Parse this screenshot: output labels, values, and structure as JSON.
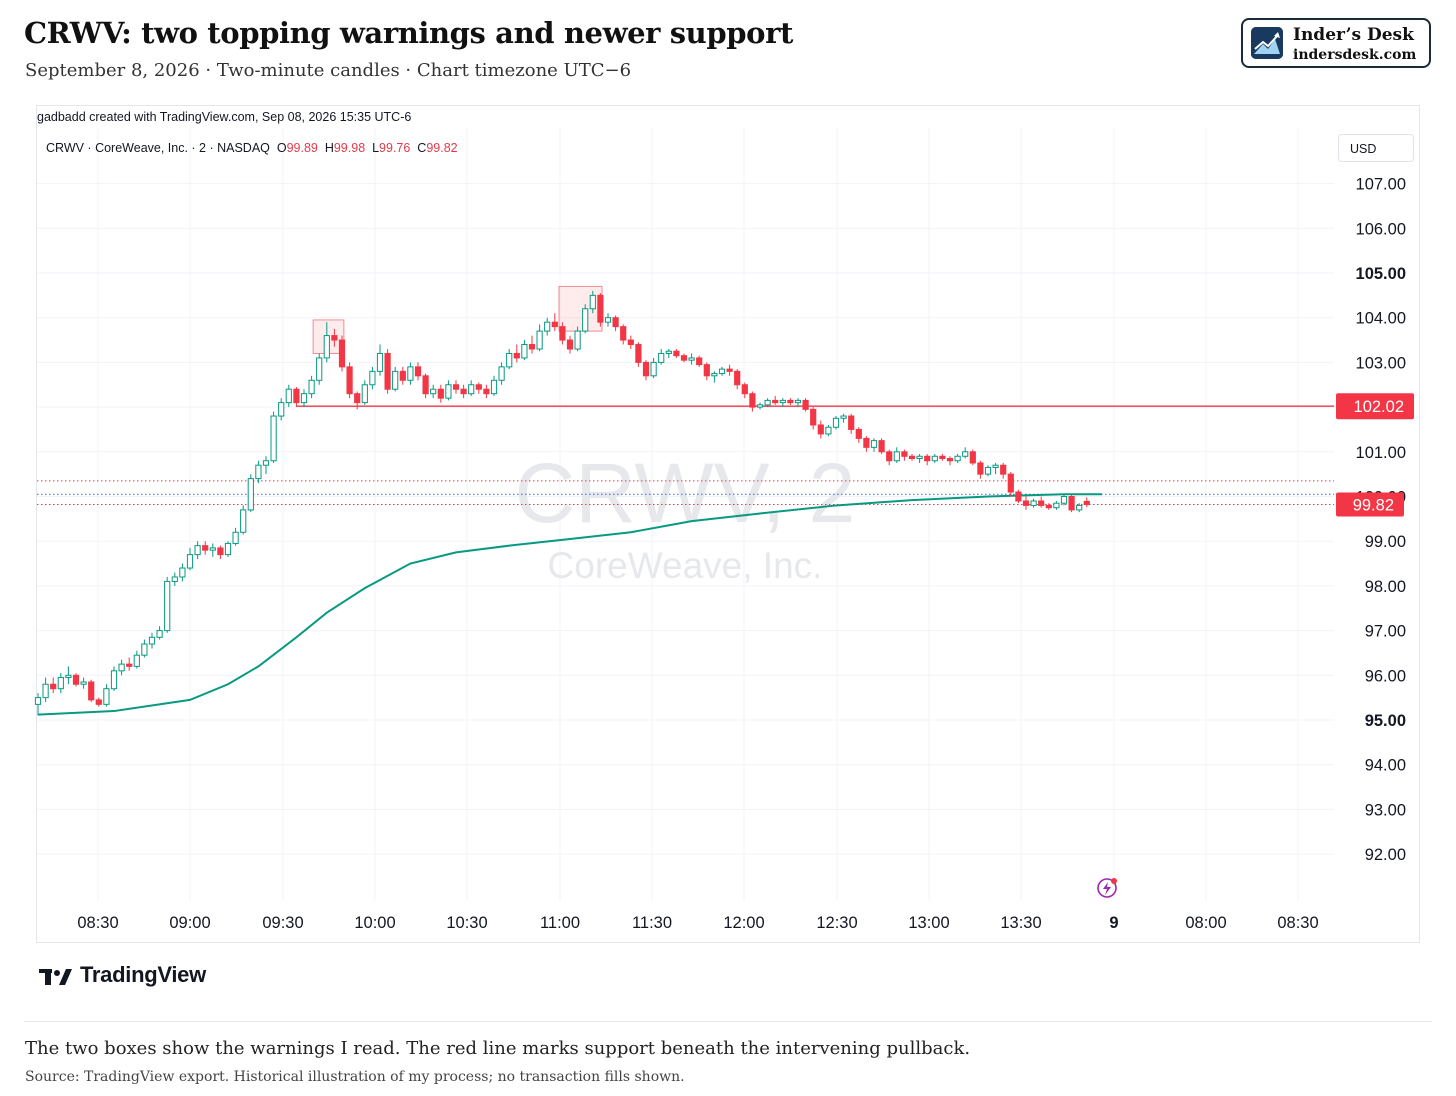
{
  "header": {
    "title": "CRWV: two topping warnings and newer support",
    "subtitle": "September 8, 2026 · Two-minute candles · Chart timezone UTC−6"
  },
  "brand": {
    "name": "Inder’s Desk",
    "url": "indersdesk.com"
  },
  "chart_meta": {
    "created_by": "gadbadd created with TradingView.com, Sep 08, 2026 15:35 UTC-6",
    "legend_symbol": "CRWV · CoreWeave, Inc. · 2 · NASDAQ",
    "legend_o_label": "O",
    "legend_o": "99.89",
    "legend_h_label": "H",
    "legend_h": "99.98",
    "legend_l_label": "L",
    "legend_l": "99.76",
    "legend_c_label": "C",
    "legend_c": "99.82",
    "currency": "USD",
    "watermark_symbol": "CRWV, 2",
    "watermark_name": "CoreWeave, Inc.",
    "tv_wordmark": "TradingView",
    "colors": {
      "up": "#089981",
      "down": "#f23645",
      "vwap": "#089981",
      "support": "#f23645",
      "box_fill": "rgba(242,54,69,0.10)",
      "box_stroke": "#f28b93"
    }
  },
  "chart_data": {
    "type": "candlestick",
    "title": "",
    "interval": "2 minutes",
    "ylim": [
      91.0,
      107.9
    ],
    "y_ticks": [
      92.0,
      93.0,
      94.0,
      95.0,
      96.0,
      97.0,
      98.0,
      99.0,
      100.0,
      101.0,
      102.0,
      103.0,
      104.0,
      105.0,
      106.0,
      107.0
    ],
    "y_tick_labels": [
      "92.00",
      "93.00",
      "94.00",
      "95.00",
      "96.00",
      "97.00",
      "98.00",
      "99.00",
      "100.00",
      "101.00",
      "102.00",
      "103.00",
      "104.00",
      "105.00",
      "106.00",
      "107.00"
    ],
    "y_tick_bold": [
      "95.00",
      "105.00"
    ],
    "x_ticks": [
      "08:30",
      "09:00",
      "09:30",
      "10:00",
      "10:30",
      "11:00",
      "11:30",
      "12:00",
      "12:30",
      "13:00",
      "13:30",
      "9",
      "08:00",
      "08:30"
    ],
    "x_tick_bold": [
      "9"
    ],
    "session_start": "08:10",
    "support_level": 102.02,
    "support_label": "102.02",
    "last_price": 99.82,
    "last_price_label": "99.82",
    "dotted_levels": [
      {
        "value": 100.35,
        "color": "#f23645"
      },
      {
        "value": 100.05,
        "color": "#2962ff"
      },
      {
        "value": 99.82,
        "color": "#f23645"
      }
    ],
    "warning_boxes": [
      {
        "t_start": "09:40",
        "t_end": "09:50",
        "low": 103.2,
        "high": 103.95
      },
      {
        "t_start": "11:00",
        "t_end": "11:14",
        "low": 103.7,
        "high": 104.7
      }
    ],
    "candles": [
      [
        95.35,
        95.6,
        95.1,
        95.5
      ],
      [
        95.5,
        95.95,
        95.4,
        95.8
      ],
      [
        95.8,
        95.95,
        95.6,
        95.7
      ],
      [
        95.7,
        96.05,
        95.6,
        95.95
      ],
      [
        95.95,
        96.2,
        95.8,
        96.0
      ],
      [
        96.0,
        96.05,
        95.75,
        95.8
      ],
      [
        95.8,
        95.95,
        95.7,
        95.85
      ],
      [
        95.85,
        95.9,
        95.4,
        95.45
      ],
      [
        95.45,
        95.5,
        95.3,
        95.35
      ],
      [
        95.35,
        95.8,
        95.3,
        95.7
      ],
      [
        95.7,
        96.2,
        95.65,
        96.1
      ],
      [
        96.1,
        96.35,
        96.0,
        96.25
      ],
      [
        96.25,
        96.4,
        96.1,
        96.2
      ],
      [
        96.2,
        96.55,
        96.15,
        96.45
      ],
      [
        96.45,
        96.8,
        96.4,
        96.7
      ],
      [
        96.7,
        96.95,
        96.6,
        96.85
      ],
      [
        96.85,
        97.1,
        96.8,
        97.0
      ],
      [
        97.0,
        98.2,
        96.95,
        98.1
      ],
      [
        98.1,
        98.3,
        98.0,
        98.2
      ],
      [
        98.2,
        98.5,
        98.1,
        98.4
      ],
      [
        98.4,
        98.85,
        98.35,
        98.7
      ],
      [
        98.7,
        99.0,
        98.6,
        98.9
      ],
      [
        98.9,
        99.0,
        98.7,
        98.8
      ],
      [
        98.8,
        98.95,
        98.65,
        98.85
      ],
      [
        98.85,
        98.9,
        98.6,
        98.7
      ],
      [
        98.7,
        99.0,
        98.65,
        98.95
      ],
      [
        98.95,
        99.3,
        98.9,
        99.2
      ],
      [
        99.2,
        99.8,
        99.15,
        99.7
      ],
      [
        99.7,
        100.5,
        99.65,
        100.4
      ],
      [
        100.4,
        100.8,
        100.3,
        100.7
      ],
      [
        100.7,
        100.9,
        100.5,
        100.8
      ],
      [
        100.8,
        101.9,
        100.75,
        101.8
      ],
      [
        101.8,
        102.2,
        101.7,
        102.1
      ],
      [
        102.1,
        102.5,
        102.0,
        102.4
      ],
      [
        102.4,
        102.45,
        102.0,
        102.1
      ],
      [
        102.1,
        102.4,
        102.0,
        102.3
      ],
      [
        102.3,
        102.7,
        102.2,
        102.6
      ],
      [
        102.6,
        103.2,
        102.5,
        103.1
      ],
      [
        103.1,
        103.9,
        103.0,
        103.6
      ],
      [
        103.6,
        103.75,
        103.35,
        103.5
      ],
      [
        103.5,
        103.6,
        102.8,
        102.9
      ],
      [
        102.9,
        103.0,
        102.2,
        102.3
      ],
      [
        102.3,
        102.35,
        101.95,
        102.1
      ],
      [
        102.1,
        102.6,
        102.05,
        102.5
      ],
      [
        102.5,
        102.9,
        102.4,
        102.8
      ],
      [
        102.8,
        103.4,
        102.7,
        103.2
      ],
      [
        103.2,
        103.3,
        102.3,
        102.4
      ],
      [
        102.4,
        102.9,
        102.35,
        102.8
      ],
      [
        102.8,
        102.9,
        102.5,
        102.6
      ],
      [
        102.6,
        103.0,
        102.5,
        102.9
      ],
      [
        102.9,
        103.0,
        102.6,
        102.7
      ],
      [
        102.7,
        102.75,
        102.2,
        102.3
      ],
      [
        102.3,
        102.5,
        102.2,
        102.4
      ],
      [
        102.4,
        102.5,
        102.1,
        102.2
      ],
      [
        102.2,
        102.6,
        102.15,
        102.5
      ],
      [
        102.5,
        102.6,
        102.3,
        102.4
      ],
      [
        102.4,
        102.5,
        102.2,
        102.3
      ],
      [
        102.3,
        102.6,
        102.25,
        102.5
      ],
      [
        102.5,
        102.55,
        102.3,
        102.4
      ],
      [
        102.4,
        102.5,
        102.2,
        102.3
      ],
      [
        102.3,
        102.7,
        102.25,
        102.6
      ],
      [
        102.6,
        103.0,
        102.5,
        102.9
      ],
      [
        102.9,
        103.3,
        102.85,
        103.2
      ],
      [
        103.2,
        103.4,
        103.0,
        103.1
      ],
      [
        103.1,
        103.5,
        103.05,
        103.4
      ],
      [
        103.4,
        103.6,
        103.2,
        103.3
      ],
      [
        103.3,
        103.85,
        103.25,
        103.7
      ],
      [
        103.7,
        104.0,
        103.6,
        103.9
      ],
      [
        103.9,
        104.1,
        103.7,
        103.8
      ],
      [
        103.8,
        103.9,
        103.4,
        103.5
      ],
      [
        103.5,
        103.6,
        103.2,
        103.3
      ],
      [
        103.3,
        103.8,
        103.25,
        103.7
      ],
      [
        103.7,
        104.3,
        103.65,
        104.2
      ],
      [
        104.2,
        104.6,
        104.1,
        104.5
      ],
      [
        104.5,
        104.55,
        103.8,
        103.9
      ],
      [
        103.9,
        104.1,
        103.8,
        104.0
      ],
      [
        104.0,
        104.05,
        103.7,
        103.8
      ],
      [
        103.8,
        103.85,
        103.4,
        103.5
      ],
      [
        103.5,
        103.6,
        103.3,
        103.4
      ],
      [
        103.4,
        103.45,
        102.9,
        103.0
      ],
      [
        103.0,
        103.05,
        102.6,
        102.7
      ],
      [
        102.7,
        103.1,
        102.65,
        103.0
      ],
      [
        103.0,
        103.3,
        102.95,
        103.2
      ],
      [
        103.2,
        103.3,
        103.1,
        103.25
      ],
      [
        103.25,
        103.3,
        103.1,
        103.15
      ],
      [
        103.15,
        103.2,
        103.0,
        103.05
      ],
      [
        103.05,
        103.2,
        102.95,
        103.1
      ],
      [
        103.1,
        103.15,
        102.9,
        102.95
      ],
      [
        102.95,
        103.0,
        102.6,
        102.7
      ],
      [
        102.7,
        102.8,
        102.55,
        102.75
      ],
      [
        102.75,
        102.9,
        102.7,
        102.85
      ],
      [
        102.85,
        102.95,
        102.7,
        102.8
      ],
      [
        102.8,
        102.85,
        102.4,
        102.5
      ],
      [
        102.5,
        102.55,
        102.2,
        102.3
      ],
      [
        102.3,
        102.35,
        101.9,
        102.0
      ],
      [
        102.0,
        102.1,
        101.95,
        102.05
      ],
      [
        102.05,
        102.2,
        102.0,
        102.15
      ],
      [
        102.15,
        102.25,
        102.05,
        102.1
      ],
      [
        102.1,
        102.2,
        102.0,
        102.15
      ],
      [
        102.15,
        102.2,
        102.05,
        102.1
      ],
      [
        102.1,
        102.2,
        102.0,
        102.15
      ],
      [
        102.15,
        102.2,
        101.9,
        101.95
      ],
      [
        101.95,
        102.0,
        101.5,
        101.6
      ],
      [
        101.6,
        101.7,
        101.3,
        101.4
      ],
      [
        101.4,
        101.6,
        101.35,
        101.55
      ],
      [
        101.55,
        101.8,
        101.5,
        101.75
      ],
      [
        101.75,
        101.85,
        101.65,
        101.8
      ],
      [
        101.8,
        101.85,
        101.4,
        101.5
      ],
      [
        101.5,
        101.55,
        101.2,
        101.3
      ],
      [
        101.3,
        101.35,
        101.0,
        101.1
      ],
      [
        101.1,
        101.3,
        101.0,
        101.25
      ],
      [
        101.25,
        101.3,
        100.95,
        101.0
      ],
      [
        101.0,
        101.05,
        100.7,
        100.8
      ],
      [
        100.8,
        101.1,
        100.75,
        101.0
      ],
      [
        101.0,
        101.05,
        100.8,
        100.9
      ],
      [
        100.9,
        100.95,
        100.8,
        100.85
      ],
      [
        100.85,
        100.95,
        100.75,
        100.9
      ],
      [
        100.9,
        100.95,
        100.7,
        100.8
      ],
      [
        100.8,
        100.95,
        100.75,
        100.9
      ],
      [
        100.9,
        100.95,
        100.8,
        100.85
      ],
      [
        100.85,
        100.9,
        100.7,
        100.8
      ],
      [
        100.8,
        100.95,
        100.75,
        100.9
      ],
      [
        100.9,
        101.1,
        100.85,
        101.0
      ],
      [
        101.0,
        101.05,
        100.7,
        100.75
      ],
      [
        100.75,
        100.8,
        100.4,
        100.5
      ],
      [
        100.5,
        100.7,
        100.45,
        100.65
      ],
      [
        100.65,
        100.75,
        100.5,
        100.7
      ],
      [
        100.7,
        100.75,
        100.4,
        100.5
      ],
      [
        100.5,
        100.55,
        100.0,
        100.1
      ],
      [
        100.1,
        100.15,
        99.85,
        99.9
      ],
      [
        99.9,
        100.0,
        99.7,
        99.8
      ],
      [
        99.8,
        99.95,
        99.75,
        99.9
      ],
      [
        99.9,
        100.0,
        99.75,
        99.8
      ],
      [
        99.8,
        99.85,
        99.7,
        99.75
      ],
      [
        99.75,
        99.9,
        99.7,
        99.85
      ],
      [
        99.85,
        100.05,
        99.8,
        100.0
      ],
      [
        100.0,
        100.05,
        99.65,
        99.7
      ],
      [
        99.7,
        99.85,
        99.65,
        99.8
      ],
      [
        99.89,
        99.98,
        99.76,
        99.82
      ]
    ],
    "vwap": [
      [
        0,
        95.12
      ],
      [
        10,
        95.2
      ],
      [
        20,
        95.45
      ],
      [
        25,
        95.8
      ],
      [
        29,
        96.2
      ],
      [
        34,
        96.85
      ],
      [
        38,
        97.4
      ],
      [
        43,
        97.95
      ],
      [
        49,
        98.5
      ],
      [
        55,
        98.75
      ],
      [
        62,
        98.9
      ],
      [
        70,
        99.05
      ],
      [
        78,
        99.2
      ],
      [
        86,
        99.45
      ],
      [
        95,
        99.62
      ],
      [
        105,
        99.8
      ],
      [
        115,
        99.92
      ],
      [
        125,
        100.0
      ],
      [
        135,
        100.05
      ],
      [
        140,
        100.05
      ]
    ]
  }
}
